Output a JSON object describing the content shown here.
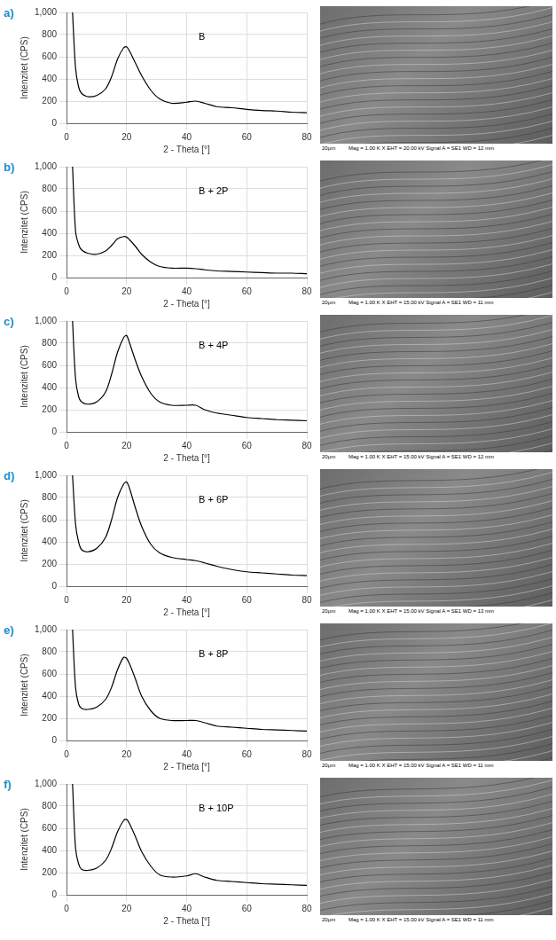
{
  "chart_data": [
    {
      "type": "line",
      "panel": "a)",
      "annotation": "B",
      "x_label": "2 - Theta [°]",
      "y_label": "Intenzitet (CPS)",
      "x": [
        2,
        3,
        4,
        5,
        7,
        10,
        13,
        15,
        17,
        19,
        20,
        21,
        23,
        25,
        28,
        31,
        35,
        40,
        43,
        46,
        50,
        55,
        60,
        65,
        70,
        75,
        80
      ],
      "values": [
        1000,
        500,
        330,
        270,
        240,
        250,
        310,
        420,
        580,
        680,
        690,
        650,
        540,
        430,
        300,
        220,
        180,
        190,
        200,
        180,
        150,
        140,
        125,
        115,
        110,
        100,
        95
      ],
      "color": "#000000",
      "xlim": [
        0,
        80
      ],
      "xticks": [
        0,
        20,
        40,
        60,
        80
      ],
      "ylim": [
        0,
        1000
      ],
      "yticks": [
        0,
        200,
        400,
        600,
        800,
        1000
      ],
      "grid": true,
      "image_scale": "20μm",
      "image_caption": "Mag =  1.00 K X    EHT = 20.00 kV    Signal A = SE1    WD =  12 mm"
    },
    {
      "type": "line",
      "panel": "b)",
      "annotation": "B + 2P",
      "x_label": "2 - Theta [°]",
      "y_label": "Intenzitet (CPS)",
      "x": [
        2,
        3,
        4,
        5,
        7,
        10,
        13,
        15,
        17,
        19,
        20,
        21,
        23,
        25,
        28,
        31,
        35,
        40,
        43,
        46,
        50,
        55,
        60,
        65,
        70,
        75,
        80
      ],
      "values": [
        1000,
        420,
        300,
        250,
        220,
        210,
        240,
        290,
        350,
        370,
        365,
        340,
        280,
        210,
        140,
        100,
        85,
        85,
        80,
        70,
        60,
        55,
        50,
        45,
        40,
        40,
        35
      ],
      "color": "#000000",
      "xlim": [
        0,
        80
      ],
      "xticks": [
        0,
        20,
        40,
        60,
        80
      ],
      "ylim": [
        0,
        1000
      ],
      "yticks": [
        0,
        200,
        400,
        600,
        800,
        1000
      ],
      "grid": true,
      "image_scale": "20μm",
      "image_caption": "Mag =  1.00 K X    EHT = 15.00 kV    Signal A = SE1    WD =  11 mm"
    },
    {
      "type": "line",
      "panel": "c)",
      "annotation": "B + 4P",
      "x_label": "2 - Theta [°]",
      "y_label": "Intenzitet (CPS)",
      "x": [
        2,
        3,
        4,
        5,
        7,
        10,
        13,
        15,
        17,
        19,
        20,
        21,
        23,
        25,
        28,
        31,
        35,
        40,
        43,
        46,
        50,
        55,
        60,
        65,
        70,
        75,
        80
      ],
      "values": [
        1000,
        480,
        320,
        270,
        250,
        270,
        360,
        520,
        720,
        850,
        870,
        800,
        640,
        500,
        350,
        270,
        240,
        240,
        240,
        200,
        170,
        150,
        130,
        120,
        110,
        105,
        100
      ],
      "color": "#000000",
      "xlim": [
        0,
        80
      ],
      "xticks": [
        0,
        20,
        40,
        60,
        80
      ],
      "ylim": [
        0,
        1000
      ],
      "yticks": [
        0,
        200,
        400,
        600,
        800,
        1000
      ],
      "grid": true,
      "image_scale": "20μm",
      "image_caption": "Mag =  1.00 K X    EHT = 15.00 kV    Signal A = SE1    WD =  12 mm"
    },
    {
      "type": "line",
      "panel": "d)",
      "annotation": "B + 6P",
      "x_label": "2 - Theta [°]",
      "y_label": "Intenzitet (CPS)",
      "x": [
        2,
        3,
        4,
        5,
        7,
        10,
        13,
        15,
        17,
        19,
        20,
        21,
        23,
        25,
        28,
        31,
        35,
        40,
        43,
        46,
        50,
        55,
        60,
        65,
        70,
        75,
        80
      ],
      "values": [
        1000,
        560,
        400,
        330,
        310,
        340,
        440,
        600,
        800,
        920,
        940,
        880,
        700,
        540,
        380,
        300,
        260,
        240,
        230,
        210,
        180,
        150,
        130,
        120,
        110,
        100,
        95
      ],
      "color": "#000000",
      "xlim": [
        0,
        80
      ],
      "xticks": [
        0,
        20,
        40,
        60,
        80
      ],
      "ylim": [
        0,
        1000
      ],
      "yticks": [
        0,
        200,
        400,
        600,
        800,
        1000
      ],
      "grid": true,
      "image_scale": "20μm",
      "image_caption": "Mag =  1.00 K X    EHT = 15.00 kV    Signal A = SE1    WD =  13 mm"
    },
    {
      "type": "line",
      "panel": "e)",
      "annotation": "B + 8P",
      "x_label": "2 - Theta [°]",
      "y_label": "Intenzitet (CPS)",
      "x": [
        2,
        3,
        4,
        5,
        7,
        10,
        13,
        15,
        17,
        19,
        20,
        21,
        23,
        25,
        28,
        31,
        35,
        40,
        43,
        46,
        50,
        55,
        60,
        65,
        70,
        75,
        80
      ],
      "values": [
        1000,
        480,
        330,
        290,
        280,
        300,
        370,
        480,
        640,
        750,
        740,
        690,
        550,
        400,
        270,
        200,
        180,
        180,
        180,
        160,
        130,
        120,
        110,
        100,
        95,
        90,
        85
      ],
      "color": "#000000",
      "xlim": [
        0,
        80
      ],
      "xticks": [
        0,
        20,
        40,
        60,
        80
      ],
      "ylim": [
        0,
        1000
      ],
      "yticks": [
        0,
        200,
        400,
        600,
        800,
        1000
      ],
      "grid": true,
      "image_scale": "20μm",
      "image_caption": "Mag =  1.00 K X    EHT = 15.00 kV    Signal A = SE1    WD =  11 mm"
    },
    {
      "type": "line",
      "panel": "f)",
      "annotation": "B + 10P",
      "x_label": "2 - Theta [°]",
      "y_label": "Intenzitet (CPS)",
      "x": [
        2,
        3,
        4,
        5,
        7,
        10,
        13,
        15,
        17,
        19,
        20,
        21,
        23,
        25,
        28,
        31,
        35,
        40,
        43,
        46,
        50,
        55,
        60,
        65,
        70,
        75,
        80
      ],
      "values": [
        1000,
        420,
        280,
        230,
        220,
        240,
        310,
        420,
        570,
        670,
        680,
        640,
        520,
        390,
        260,
        180,
        160,
        170,
        190,
        160,
        130,
        120,
        110,
        100,
        95,
        90,
        85
      ],
      "color": "#000000",
      "xlim": [
        0,
        80
      ],
      "xticks": [
        0,
        20,
        40,
        60,
        80
      ],
      "ylim": [
        0,
        1000
      ],
      "yticks": [
        0,
        200,
        400,
        600,
        800,
        1000
      ],
      "grid": true,
      "image_scale": "20μm",
      "image_caption": "Mag =  1.00 K X    EHT = 15.00 kV    Signal A = SE1    WD =  11 mm"
    }
  ]
}
